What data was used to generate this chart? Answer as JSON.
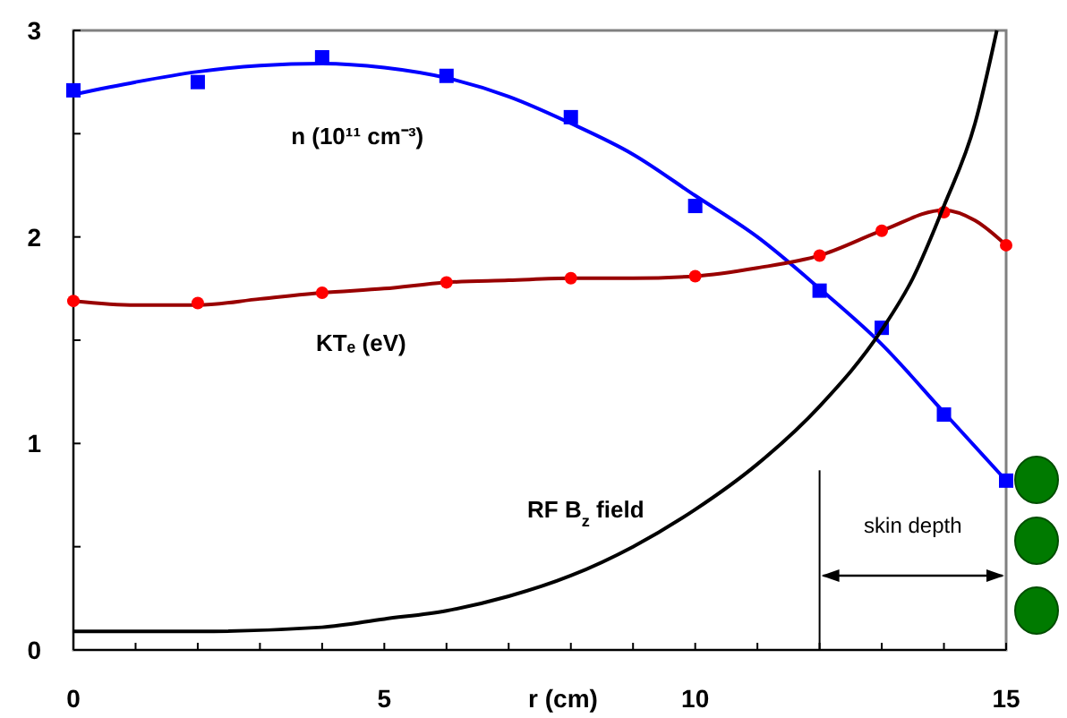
{
  "chart_data": {
    "type": "line",
    "xlabel": "r (cm)",
    "xlim": [
      0,
      15
    ],
    "ylim": [
      0,
      3
    ],
    "xticks": [
      0,
      {
        "value": 1,
        "label": null
      },
      {
        "value": 2,
        "label": null
      },
      {
        "value": 3,
        "label": null
      },
      {
        "value": 4,
        "label": null
      },
      5,
      {
        "value": 6,
        "label": null
      },
      {
        "value": 7,
        "label": null
      },
      {
        "value": 8,
        "label": null
      },
      {
        "value": 9,
        "label": null
      },
      10,
      {
        "value": 11,
        "label": null
      },
      {
        "value": 12,
        "label": null
      },
      {
        "value": 13,
        "label": null
      },
      {
        "value": 14,
        "label": null
      },
      15
    ],
    "yticks": [
      0,
      {
        "value": 0.5,
        "label": null
      },
      1,
      {
        "value": 1.5,
        "label": null
      },
      2,
      {
        "value": 2.5,
        "label": null
      },
      3
    ],
    "grid": false,
    "series": [
      {
        "name": "n (10¹¹ cm⁻³)",
        "color": "#0000ff",
        "marker": "none",
        "x": [
          0,
          1,
          2,
          3,
          4,
          5,
          6,
          7,
          8,
          9,
          10,
          11,
          12,
          13,
          14,
          15
        ],
        "values": [
          2.69,
          2.75,
          2.8,
          2.83,
          2.84,
          2.82,
          2.77,
          2.68,
          2.55,
          2.4,
          2.2,
          2.0,
          1.75,
          1.48,
          1.15,
          0.82
        ]
      },
      {
        "color": "#0000ff",
        "type": "scatter",
        "marker": "square",
        "x": [
          0,
          2,
          4,
          6,
          8,
          10,
          12,
          13,
          14,
          15
        ],
        "values": [
          2.71,
          2.75,
          2.87,
          2.78,
          2.58,
          2.15,
          1.74,
          1.56,
          1.14,
          0.82
        ]
      },
      {
        "name": "KTₑ (eV)",
        "color": "#990000",
        "marker": "none",
        "x": [
          0,
          1,
          2,
          3,
          4,
          5,
          6,
          7,
          8,
          9,
          10,
          11,
          12,
          13,
          14,
          14.5,
          15
        ],
        "values": [
          1.69,
          1.67,
          1.67,
          1.7,
          1.73,
          1.75,
          1.78,
          1.79,
          1.8,
          1.8,
          1.81,
          1.85,
          1.91,
          2.03,
          2.13,
          2.08,
          1.96
        ]
      },
      {
        "color": "#ff0000",
        "type": "scatter",
        "marker": "circle",
        "x": [
          0,
          2,
          4,
          6,
          8,
          10,
          12,
          13,
          14,
          15
        ],
        "values": [
          1.69,
          1.68,
          1.73,
          1.78,
          1.8,
          1.81,
          1.91,
          2.03,
          2.12,
          1.96
        ]
      },
      {
        "name": "RF B$_{z}$ field",
        "color": "#000000",
        "marker": "none",
        "x": [
          0,
          2,
          4,
          5,
          6,
          7,
          8,
          9,
          10,
          11,
          12,
          13,
          13.5,
          14,
          14.5,
          14.85
        ],
        "values": [
          0.09,
          0.09,
          0.11,
          0.15,
          0.19,
          0.26,
          0.36,
          0.5,
          0.68,
          0.9,
          1.18,
          1.55,
          1.8,
          2.15,
          2.55,
          3.0
        ]
      }
    ],
    "ref_lines": [
      {
        "axis": "x",
        "value": 12,
        "color": "#000000"
      }
    ],
    "annotations": [
      "skin depth"
    ]
  }
}
